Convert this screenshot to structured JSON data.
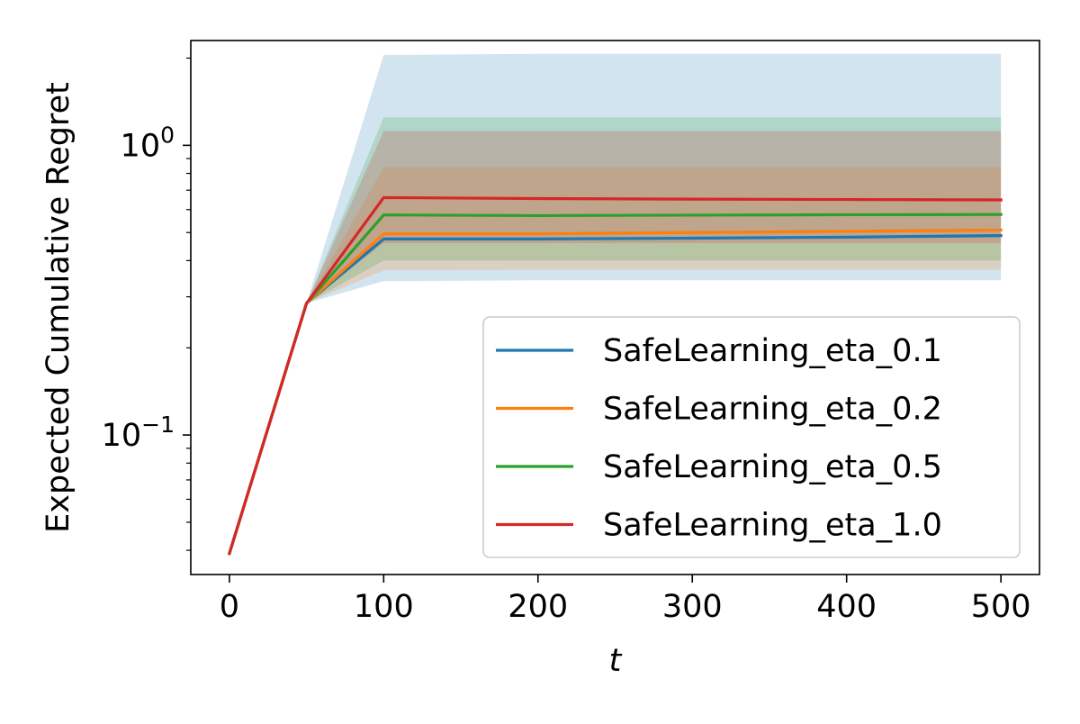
{
  "chart_data": {
    "type": "line",
    "title": "",
    "xlabel": "t",
    "ylabel": "Expected Cumulative Regret",
    "xscale": "linear",
    "yscale": "log",
    "xlim": [
      -25,
      525
    ],
    "ylim": [
      0.033,
      2.3
    ],
    "grid": false,
    "legend_position": "lower-right",
    "x_ticks": [
      0,
      100,
      200,
      300,
      400,
      500
    ],
    "x_tick_labels": [
      "0",
      "100",
      "200",
      "300",
      "400",
      "500"
    ],
    "y_ticks": [
      0.1,
      1
    ],
    "y_tick_labels": [
      {
        "base": "10",
        "exp": "−1"
      },
      {
        "base": "10",
        "exp": "0"
      }
    ],
    "y_minor_ticks": [
      0.04,
      0.05,
      0.06,
      0.07,
      0.08,
      0.09,
      0.2,
      0.3,
      0.4,
      0.5,
      0.6,
      0.7,
      0.8,
      0.9,
      2
    ],
    "x": [
      0,
      50,
      100,
      200,
      300,
      400,
      500
    ],
    "series": [
      {
        "name": "SafeLearning_eta_0.1",
        "color": "#1f77b4",
        "band_opacity": 0.2,
        "values": [
          0.039,
          0.285,
          0.475,
          0.475,
          0.478,
          0.482,
          0.488
        ],
        "lower": [
          0.039,
          0.285,
          0.34,
          0.342,
          0.342,
          0.342,
          0.342
        ],
        "upper": [
          0.039,
          0.285,
          2.05,
          2.07,
          2.07,
          2.07,
          2.07
        ]
      },
      {
        "name": "SafeLearning_eta_0.2",
        "color": "#ff7f0e",
        "band_opacity": 0.2,
        "values": [
          0.039,
          0.285,
          0.495,
          0.495,
          0.5,
          0.505,
          0.51
        ],
        "lower": [
          0.039,
          0.285,
          0.37,
          0.372,
          0.372,
          0.372,
          0.372
        ],
        "upper": [
          0.039,
          0.285,
          0.84,
          0.84,
          0.84,
          0.84,
          0.84
        ]
      },
      {
        "name": "SafeLearning_eta_0.5",
        "color": "#2ca02c",
        "band_opacity": 0.2,
        "values": [
          0.039,
          0.285,
          0.575,
          0.572,
          0.574,
          0.576,
          0.577
        ],
        "lower": [
          0.039,
          0.285,
          0.4,
          0.4,
          0.4,
          0.4,
          0.4
        ],
        "upper": [
          0.039,
          0.285,
          1.25,
          1.25,
          1.25,
          1.25,
          1.25
        ]
      },
      {
        "name": "SafeLearning_eta_1.0",
        "color": "#d62728",
        "band_opacity": 0.2,
        "values": [
          0.039,
          0.285,
          0.66,
          0.655,
          0.652,
          0.65,
          0.648
        ],
        "lower": [
          0.039,
          0.285,
          0.46,
          0.46,
          0.46,
          0.46,
          0.46
        ],
        "upper": [
          0.039,
          0.285,
          1.12,
          1.12,
          1.12,
          1.12,
          1.12
        ]
      }
    ]
  }
}
